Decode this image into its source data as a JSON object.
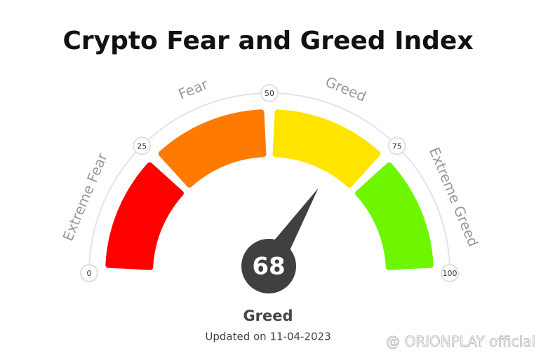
{
  "chart_data": {
    "type": "gauge",
    "title": "Crypto Fear and Greed Index",
    "value": 68,
    "classification": "Greed",
    "updated": "Updated on 11-04-2023",
    "watermark": "@ ORIONPLAY official",
    "xlim": [
      0,
      100
    ],
    "xticks": [
      0,
      25,
      50,
      75,
      100
    ],
    "segments": [
      {
        "name": "Extreme Fear",
        "from": 0,
        "to": 25,
        "color": "#ff0000"
      },
      {
        "name": "Fear",
        "from": 25,
        "to": 50,
        "color": "#ff7a00"
      },
      {
        "name": "Greed",
        "from": 50,
        "to": 75,
        "color": "#ffe400"
      },
      {
        "name": "Extreme Greed",
        "from": 75,
        "to": 100,
        "color": "#6ef600"
      }
    ]
  }
}
